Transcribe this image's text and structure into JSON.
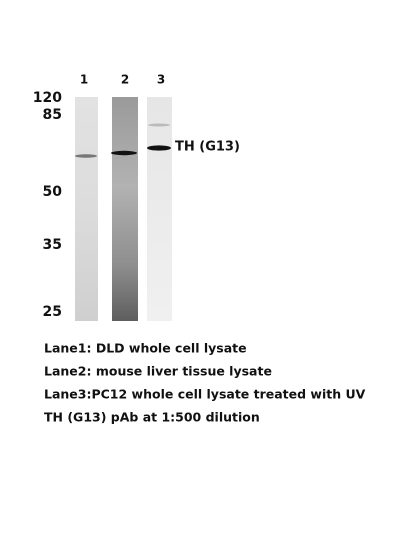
{
  "lanes": [
    "1",
    "2",
    "3"
  ],
  "markers": [
    "120",
    "85",
    "50",
    "35",
    "25"
  ],
  "band_label": "TH (G13)",
  "legend": [
    "Lane1: DLD whole cell lysate",
    "Lane2: mouse liver tissue lysate",
    "Lane3:PC12 whole cell lysate treated with UV",
    "TH (G13) pAb at 1:500 dilution"
  ]
}
